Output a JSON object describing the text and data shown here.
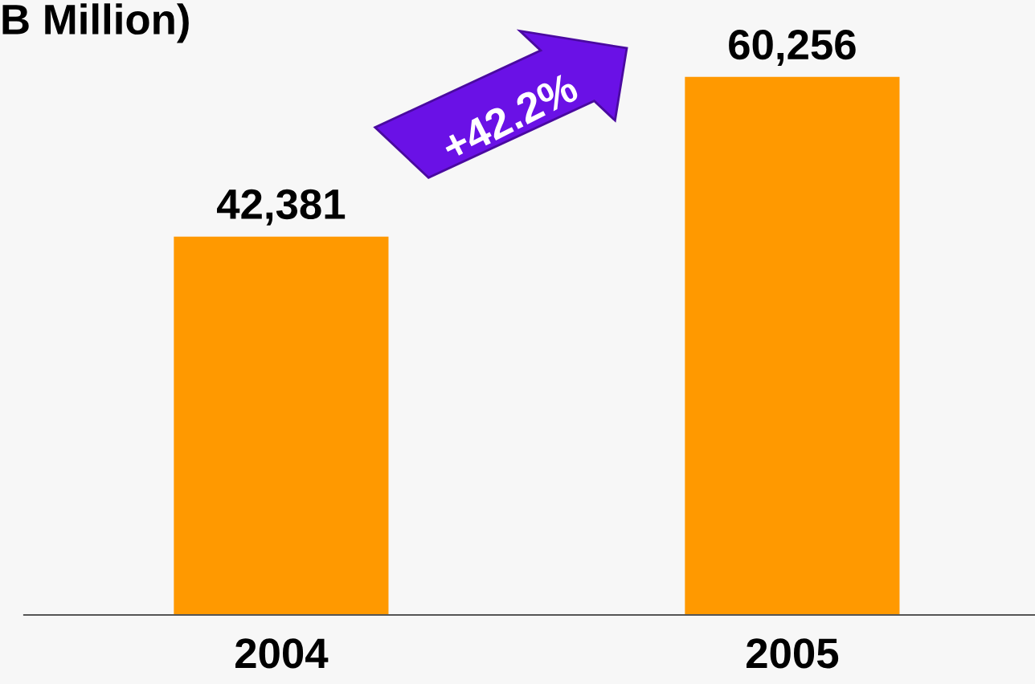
{
  "chart_data": {
    "type": "bar",
    "title": "B Million)",
    "categories": [
      "2004",
      "2005"
    ],
    "values": [
      42381,
      60256
    ],
    "color": "#ff9900",
    "value_labels": [
      "42,381",
      "60,256"
    ],
    "annotations": [
      "+42.2%"
    ]
  }
}
